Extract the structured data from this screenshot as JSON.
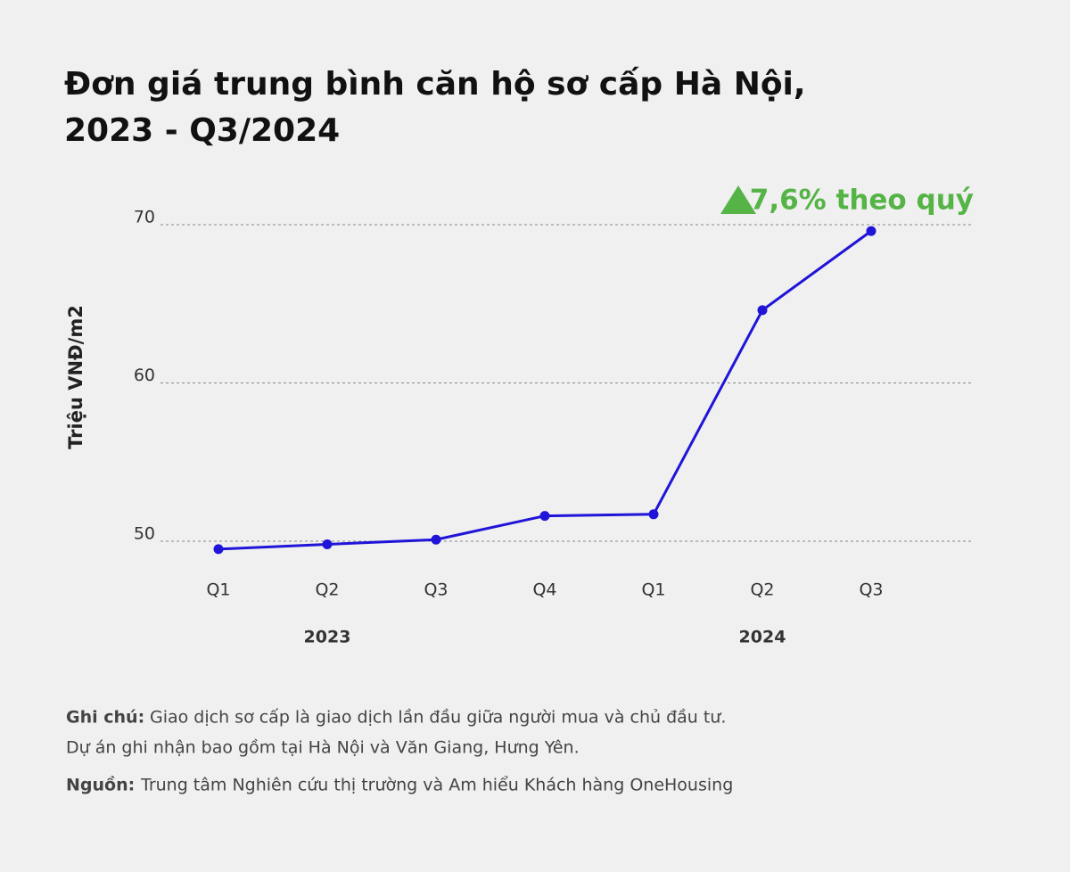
{
  "chart_data": {
    "type": "line",
    "title_lines": [
      "Đơn giá trung bình căn hộ sơ cấp Hà Nội,",
      "2023 - Q3/2024"
    ],
    "y_label": "Triệu VNĐ/m2",
    "annotation": "7,6% theo quý",
    "categories": [
      "Q1",
      "Q2",
      "Q3",
      "Q4",
      "Q1",
      "Q2",
      "Q3"
    ],
    "year_labels": [
      "2023",
      "2024"
    ],
    "values": [
      49.5,
      49.8,
      50.1,
      51.6,
      51.7,
      64.6,
      69.6
    ],
    "color": "#1f14d8",
    "ylim": [
      48.5,
      70.7
    ],
    "yticks": [
      50,
      60,
      70
    ],
    "grid": true
  },
  "footer": {
    "note_label": "Ghi chú:",
    "note_lines": [
      "Giao dịch sơ cấp là giao dịch lần đầu giữa người mua và chủ đầu tư.",
      "Dự án ghi nhận bao gồm tại Hà Nội và Văn Giang, Hưng Yên."
    ],
    "source_label": "Nguồn:",
    "source_text": "Trung tâm Nghiên cứu thị trường và Am hiểu Khách hàng OneHousing"
  }
}
